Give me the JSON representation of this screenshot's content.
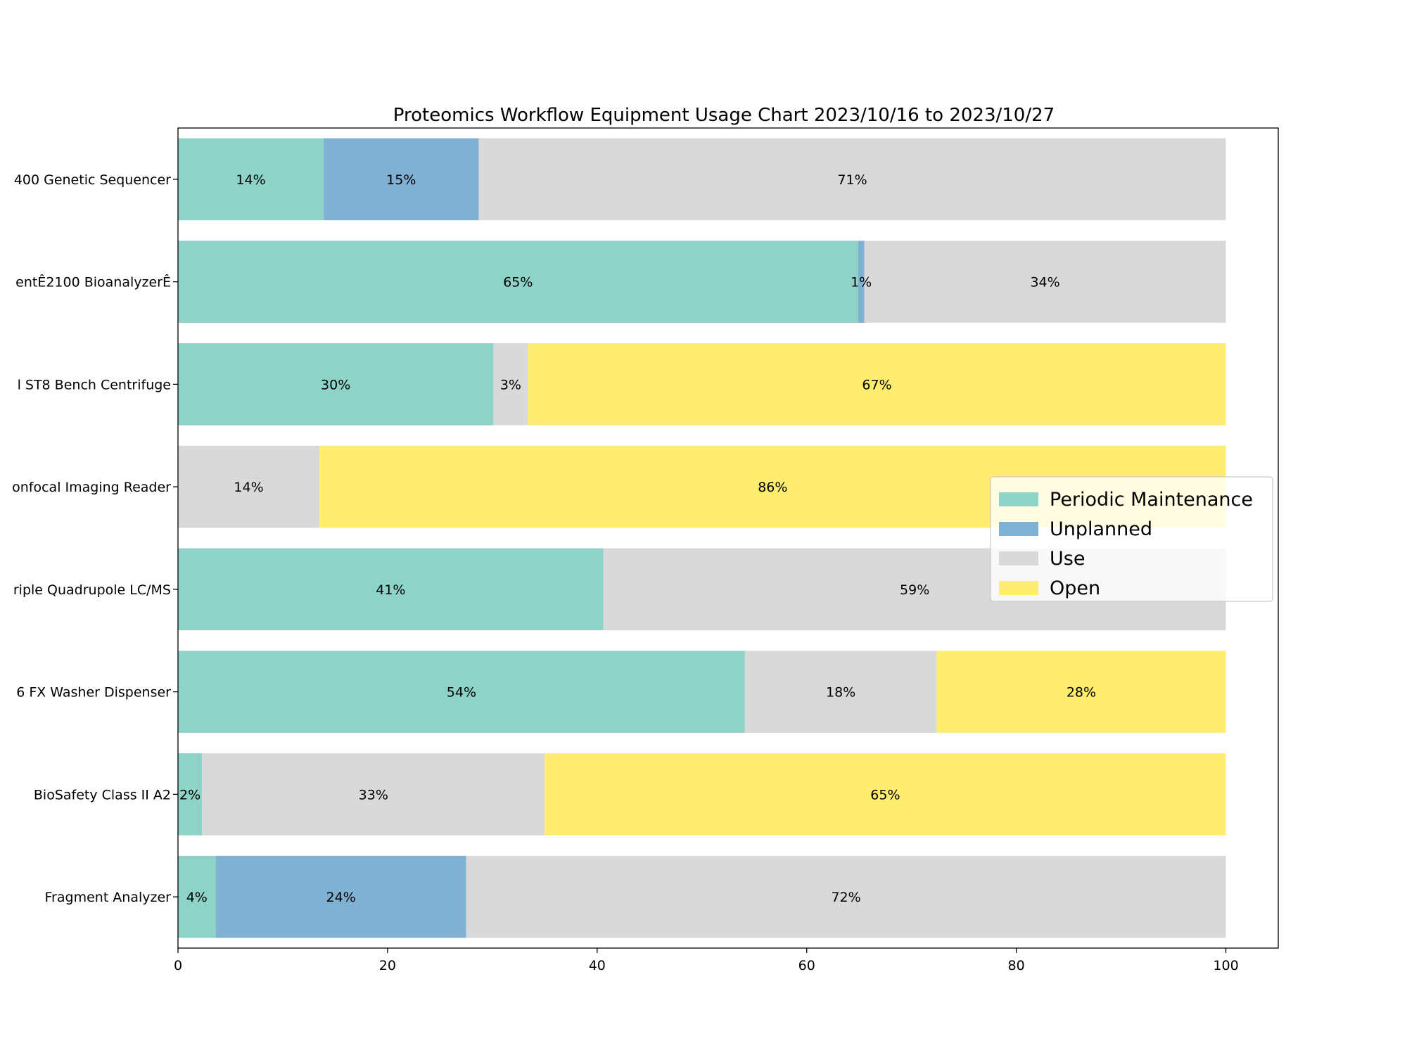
{
  "chart_data": {
    "type": "bar",
    "orientation": "horizontal",
    "stacked": true,
    "title": "Proteomics Workflow Equipment Usage Chart 2023/10/16 to 2023/10/27",
    "xlabel": "",
    "ylabel": "",
    "xlim": [
      0,
      105
    ],
    "x_ticks": [
      0,
      20,
      40,
      60,
      80,
      100
    ],
    "grid": false,
    "legend_position": "center-right",
    "categories": [
      "400 Genetic Sequencer",
      "entÊ2100 BioanalyzerÊ",
      "l ST8 Bench Centrifuge",
      "onfocal Imaging Reader",
      "riple Quadrupole LC/MS",
      "6 FX Washer Dispenser",
      "BioSafety Class II A2",
      "Fragment Analyzer"
    ],
    "series": [
      {
        "name": "Periodic Maintenance",
        "color": "#8dd3c7",
        "values": [
          13.9,
          64.9,
          30.1,
          0,
          40.6,
          54.1,
          2.3,
          3.6
        ],
        "labels": [
          "14%",
          "65%",
          "30%",
          "",
          "41%",
          "54%",
          "2%",
          "4%"
        ]
      },
      {
        "name": "Unplanned",
        "color": "#80b1d3",
        "values": [
          14.8,
          0.6,
          0,
          0,
          0,
          0,
          0,
          23.9
        ],
        "labels": [
          "15%",
          "1%",
          "",
          "",
          "",
          "",
          "",
          "24%"
        ]
      },
      {
        "name": "Use",
        "color": "#d9d9d9",
        "values": [
          71.3,
          34.5,
          3.3,
          13.5,
          59.4,
          18.3,
          32.7,
          72.5
        ],
        "labels": [
          "71%",
          "34%",
          "3%",
          "14%",
          "59%",
          "18%",
          "33%",
          "72%"
        ]
      },
      {
        "name": "Open",
        "color": "#ffed6f",
        "values": [
          0,
          0,
          66.6,
          86.5,
          0,
          27.6,
          65.0,
          0
        ],
        "labels": [
          "",
          "",
          "67%",
          "86%",
          "",
          "28%",
          "65%",
          ""
        ]
      }
    ]
  }
}
